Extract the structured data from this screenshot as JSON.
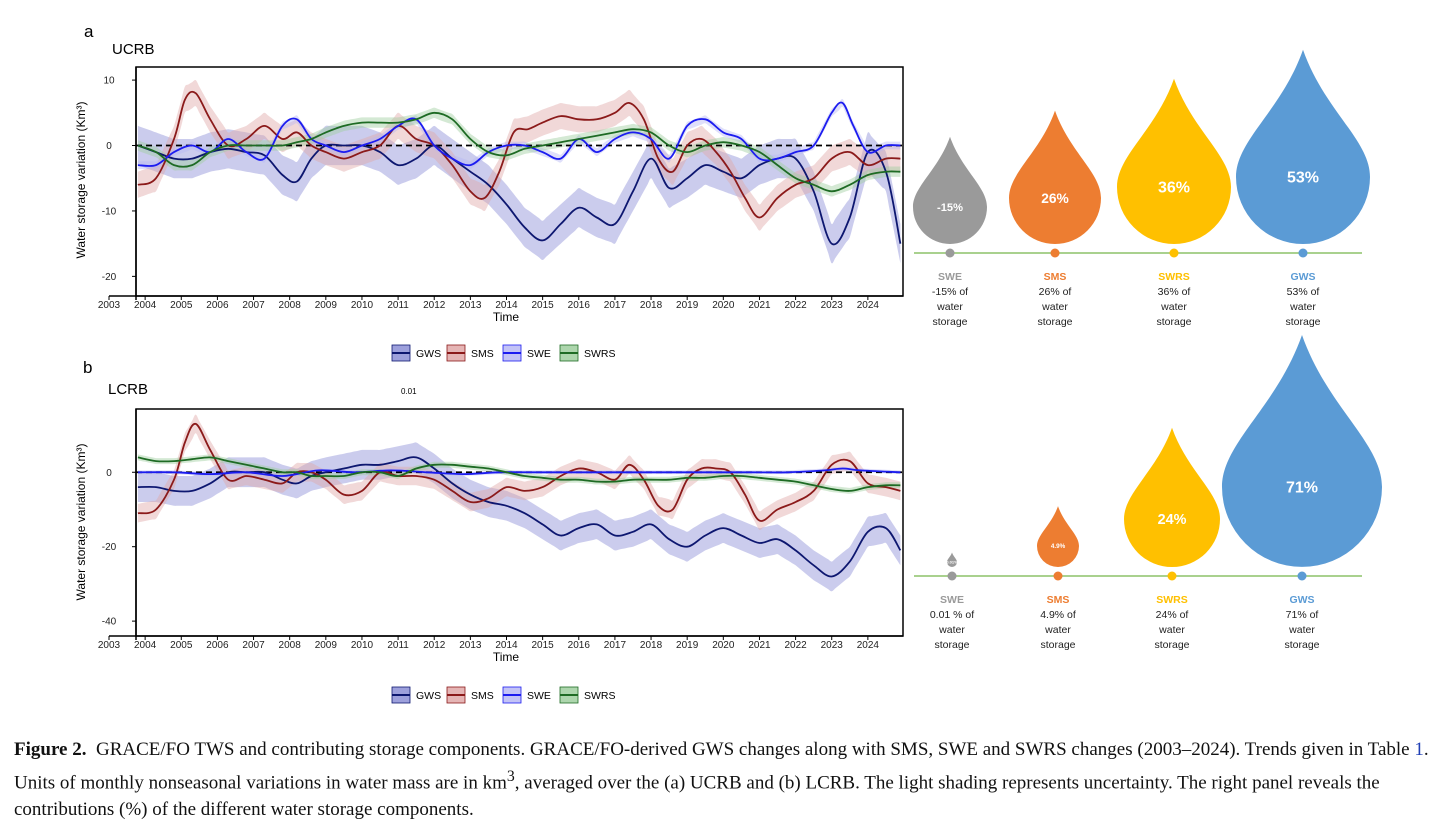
{
  "chart_data": [
    {
      "type": "line",
      "panel": "a",
      "title": "UCRB",
      "xlabel": "Time",
      "ylabel": "Water storage variation  (Km³)",
      "xlim": [
        2003,
        2025
      ],
      "ylim": [
        -23,
        12
      ],
      "x_ticks": [
        "2003",
        "2004",
        "2005",
        "2006",
        "2007",
        "2008",
        "2009",
        "2010",
        "2011",
        "2012",
        "2013",
        "2014",
        "2015",
        "2016",
        "2017",
        "2018",
        "2019",
        "2020",
        "2021",
        "2022",
        "2023",
        "2024"
      ],
      "y_ticks": [
        10,
        0,
        -10,
        -20
      ],
      "reference_line": 0,
      "grid": false,
      "legend": [
        "GWS",
        "SMS",
        "SWE",
        "SWRS"
      ],
      "legend_position": "bottom-center",
      "series": [
        {
          "name": "GWS",
          "color": "#0d1770",
          "band_color": "#8c8fd6",
          "band": 3,
          "x": [
            2003.8,
            2004.3,
            2004.8,
            2005.3,
            2005.8,
            2006.3,
            2006.8,
            2007.3,
            2007.8,
            2008.2,
            2008.6,
            2009.0,
            2009.5,
            2010.0,
            2010.5,
            2011.0,
            2011.5,
            2012.0,
            2012.5,
            2013.0,
            2013.5,
            2014.0,
            2014.5,
            2015.0,
            2015.5,
            2016.0,
            2016.5,
            2017.0,
            2017.5,
            2018.0,
            2018.5,
            2019.0,
            2019.5,
            2020.0,
            2020.5,
            2021.0,
            2021.5,
            2022.0,
            2022.5,
            2023.0,
            2023.5,
            2024.0,
            2024.5,
            2024.9
          ],
          "y": [
            0,
            -1,
            -2,
            -2,
            -1,
            -0.5,
            -1,
            -1.5,
            -4.5,
            -5.5,
            -2,
            0,
            0,
            0,
            -1,
            -3,
            -2,
            0,
            -2,
            -4,
            -6,
            -9,
            -12.5,
            -14.5,
            -12,
            -9.5,
            -11,
            -12,
            -7,
            -2,
            -6.5,
            -5,
            -3,
            -4,
            -5,
            -3,
            -2,
            -2,
            -7,
            -15,
            -11,
            -1,
            -4,
            -15
          ]
        },
        {
          "name": "SMS",
          "color": "#8b1a1a",
          "band_color": "#e0a8a8",
          "band": 2,
          "x": [
            2003.8,
            2004.3,
            2004.8,
            2005.1,
            2005.4,
            2005.8,
            2006.3,
            2006.8,
            2007.3,
            2007.8,
            2008.2,
            2008.6,
            2009.0,
            2009.5,
            2010.0,
            2010.5,
            2011.0,
            2011.5,
            2012.0,
            2012.5,
            2013.0,
            2013.4,
            2013.8,
            2014.2,
            2014.6,
            2015.0,
            2015.5,
            2016.0,
            2016.5,
            2017.0,
            2017.4,
            2017.8,
            2018.2,
            2018.6,
            2019.0,
            2019.4,
            2019.8,
            2020.2,
            2020.6,
            2021.0,
            2021.5,
            2022.0,
            2022.5,
            2023.0,
            2023.5,
            2024.0,
            2024.5,
            2024.9
          ],
          "y": [
            -6,
            -5,
            1,
            7,
            8,
            4,
            0,
            1,
            3,
            1,
            2,
            0,
            -1,
            -2,
            -1,
            0,
            3,
            1,
            0,
            -3,
            -7,
            -8,
            -4,
            2,
            2.5,
            3.5,
            4.5,
            4,
            4,
            5,
            6.5,
            4,
            -2,
            -4,
            0,
            1,
            -1,
            -4,
            -8,
            -11,
            -8,
            -6,
            -5,
            -2,
            -1,
            -3,
            -2,
            -2
          ]
        },
        {
          "name": "SWE",
          "color": "#1c1cf0",
          "band_color": "#b8b8f5",
          "band": 0.6,
          "x": [
            2003.8,
            2004.3,
            2004.8,
            2005.3,
            2005.8,
            2006.3,
            2006.8,
            2007.3,
            2007.8,
            2008.2,
            2008.6,
            2009.0,
            2009.5,
            2010.0,
            2010.5,
            2011.0,
            2011.5,
            2012.0,
            2012.5,
            2013.0,
            2013.5,
            2014.0,
            2014.5,
            2015.0,
            2015.5,
            2016.0,
            2016.5,
            2017.0,
            2017.5,
            2018.0,
            2018.5,
            2019.0,
            2019.5,
            2020.0,
            2020.5,
            2021.0,
            2021.5,
            2022.0,
            2022.5,
            2023.0,
            2023.3,
            2023.6,
            2024.0,
            2024.5,
            2024.9
          ],
          "y": [
            -3,
            -3,
            -1,
            0,
            -1,
            1,
            -1,
            -2,
            3,
            4,
            1,
            0,
            -1,
            0,
            1,
            3,
            4,
            0,
            -2,
            -3,
            -1,
            0,
            0,
            -1,
            -2,
            1,
            -1,
            1,
            2,
            1,
            -2,
            3,
            4,
            2,
            1,
            -2,
            -2,
            -1,
            0,
            5,
            6.5,
            3,
            -1,
            0,
            0
          ]
        },
        {
          "name": "SWRS",
          "color": "#1e6b24",
          "band_color": "#9fcf9f",
          "band": 0.8,
          "x": [
            2003.8,
            2004.3,
            2004.8,
            2005.3,
            2005.8,
            2006.3,
            2006.8,
            2007.3,
            2007.8,
            2008.2,
            2008.6,
            2009.0,
            2009.5,
            2010.0,
            2010.5,
            2011.0,
            2011.5,
            2012.0,
            2012.5,
            2013.0,
            2013.5,
            2014.0,
            2014.5,
            2015.0,
            2015.5,
            2016.0,
            2016.5,
            2017.0,
            2017.5,
            2018.0,
            2018.5,
            2019.0,
            2019.5,
            2020.0,
            2020.5,
            2021.0,
            2021.5,
            2022.0,
            2022.5,
            2023.0,
            2023.5,
            2024.0,
            2024.5,
            2024.9
          ],
          "y": [
            0,
            -1,
            -3,
            -3,
            -1,
            0,
            0,
            0,
            0,
            0.5,
            1,
            2,
            3,
            3.5,
            3.5,
            3.5,
            4,
            5,
            4,
            1,
            -1,
            -1.5,
            -0.5,
            0,
            0.5,
            1,
            1.5,
            2,
            2.5,
            2,
            0,
            -1,
            0,
            0.5,
            0,
            -1,
            -3,
            -5,
            -6,
            -7,
            -6,
            -4.5,
            -4,
            -4
          ]
        }
      ]
    },
    {
      "type": "line",
      "panel": "b",
      "title": "LCRB",
      "xlabel": "Time",
      "ylabel": "Water storage variation  (Km³)",
      "xlim": [
        2003,
        2025
      ],
      "ylim": [
        -44,
        17
      ],
      "x_ticks": [
        "2003",
        "2004",
        "2005",
        "2006",
        "2007",
        "2008",
        "2009",
        "2010",
        "2011",
        "2012",
        "2013",
        "2014",
        "2015",
        "2016",
        "2017",
        "2018",
        "2019",
        "2020",
        "2021",
        "2022",
        "2023",
        "2024"
      ],
      "y_ticks": [
        0,
        -20,
        -40
      ],
      "reference_line": 0,
      "grid": false,
      "legend": [
        "GWS",
        "SMS",
        "SWE",
        "SWRS"
      ],
      "legend_position": "bottom-center",
      "series": [
        {
          "name": "GWS",
          "color": "#0d1770",
          "band_color": "#8c8fd6",
          "band": 4,
          "x": [
            2003.8,
            2004.3,
            2004.8,
            2005.3,
            2005.8,
            2006.3,
            2006.8,
            2007.3,
            2007.8,
            2008.2,
            2008.6,
            2009.0,
            2009.5,
            2010.0,
            2010.5,
            2011.0,
            2011.5,
            2012.0,
            2012.5,
            2013.0,
            2013.5,
            2014.0,
            2014.5,
            2015.0,
            2015.5,
            2016.0,
            2016.5,
            2017.0,
            2017.5,
            2018.0,
            2018.5,
            2019.0,
            2019.5,
            2020.0,
            2020.5,
            2021.0,
            2021.5,
            2022.0,
            2022.5,
            2023.0,
            2023.5,
            2024.0,
            2024.5,
            2024.9
          ],
          "y": [
            -4,
            -4,
            -5,
            -5,
            -3,
            0,
            0,
            0,
            -2,
            -3,
            -1,
            0,
            1,
            2,
            2,
            3,
            4,
            1,
            -3,
            -6,
            -8,
            -9,
            -11,
            -14,
            -17,
            -15,
            -14,
            -17,
            -16,
            -14,
            -18,
            -20,
            -17,
            -15,
            -17,
            -19,
            -18,
            -21,
            -25,
            -28,
            -24,
            -16,
            -15,
            -21
          ]
        },
        {
          "name": "SMS",
          "color": "#8b1a1a",
          "band_color": "#e0a8a8",
          "band": 2.5,
          "x": [
            2003.8,
            2004.3,
            2004.8,
            2005.1,
            2005.4,
            2005.8,
            2006.3,
            2006.8,
            2007.3,
            2007.8,
            2008.2,
            2008.6,
            2009.0,
            2009.5,
            2010.0,
            2010.5,
            2011.0,
            2011.5,
            2012.0,
            2012.5,
            2013.0,
            2013.5,
            2014.0,
            2014.5,
            2015.0,
            2015.5,
            2016.0,
            2016.5,
            2017.0,
            2017.4,
            2017.8,
            2018.2,
            2018.6,
            2019.0,
            2019.4,
            2019.8,
            2020.2,
            2020.6,
            2021.0,
            2021.5,
            2022.0,
            2022.5,
            2023.0,
            2023.5,
            2024.0,
            2024.5,
            2024.9
          ],
          "y": [
            -11,
            -10,
            -2,
            8,
            13,
            6,
            -2,
            -1,
            -2,
            -3,
            0,
            0,
            -2,
            -6,
            -5,
            0,
            -1,
            -1,
            -2,
            -5,
            -8,
            -7,
            -4,
            -5,
            -4,
            -1,
            1,
            0,
            -2,
            2,
            -2,
            -9,
            -10,
            -2,
            1,
            1,
            0,
            -6,
            -13,
            -10,
            -8,
            -5,
            2,
            3,
            -3,
            -4,
            -5
          ]
        },
        {
          "name": "SWE",
          "color": "#1c1cf0",
          "band_color": "#b8b8f5",
          "band": 0.5,
          "x": [
            2003.8,
            2004.8,
            2005.8,
            2006.8,
            2007.8,
            2008.8,
            2009.8,
            2010.8,
            2011.8,
            2012.8,
            2013.8,
            2014.8,
            2015.8,
            2016.8,
            2017.8,
            2018.8,
            2019.8,
            2020.8,
            2021.8,
            2022.8,
            2023.3,
            2023.8,
            2024.9
          ],
          "y": [
            0,
            0,
            -0.5,
            0,
            -1,
            0.5,
            0,
            0.5,
            0,
            -0.5,
            0,
            0,
            0,
            0,
            0,
            0,
            0,
            0,
            0,
            0.5,
            1,
            0.5,
            0
          ]
        },
        {
          "name": "SWRS",
          "color": "#1e6b24",
          "band_color": "#9fcf9f",
          "band": 0.8,
          "x": [
            2003.8,
            2004.3,
            2004.8,
            2005.3,
            2005.8,
            2006.3,
            2006.8,
            2007.3,
            2007.8,
            2008.2,
            2008.6,
            2009.0,
            2009.5,
            2010.0,
            2010.5,
            2011.0,
            2011.5,
            2012.0,
            2012.5,
            2013.0,
            2013.5,
            2014.0,
            2014.5,
            2015.0,
            2015.5,
            2016.0,
            2016.5,
            2017.0,
            2017.5,
            2018.0,
            2018.5,
            2019.0,
            2019.5,
            2020.0,
            2020.5,
            2021.0,
            2021.5,
            2022.0,
            2022.5,
            2023.0,
            2023.5,
            2024.0,
            2024.5,
            2024.9
          ],
          "y": [
            4,
            3,
            3,
            3.5,
            4,
            3,
            2,
            1,
            0,
            0,
            -1,
            -1,
            -1,
            0,
            0,
            -1,
            1,
            2,
            2,
            1.5,
            1,
            0,
            -1,
            -1.5,
            -2,
            -2,
            -2.5,
            -2.5,
            -2,
            -2,
            -2,
            -1.5,
            -1.5,
            -1,
            -1,
            -1.5,
            -2,
            -2.5,
            -3.5,
            -4.5,
            -5,
            -4,
            -3.5,
            -3.5
          ]
        }
      ]
    }
  ],
  "panel_labels": {
    "a": "a",
    "b": "b"
  },
  "stray_label": "0.01",
  "contributions": [
    {
      "panel": "UCRB",
      "items": [
        {
          "name": "SWE",
          "value": -15,
          "drop_label": "-15%",
          "desc": [
            "-15% of",
            "water",
            "storage"
          ],
          "color": "#9a9a9a"
        },
        {
          "name": "SMS",
          "value": 26,
          "drop_label": "26%",
          "desc": [
            "26% of",
            "water",
            "storage"
          ],
          "color": "#ed7d31"
        },
        {
          "name": "SWRS",
          "value": 36,
          "drop_label": "36%",
          "desc": [
            "36% of",
            "water",
            "storage"
          ],
          "color": "#ffc000"
        },
        {
          "name": "GWS",
          "value": 53,
          "drop_label": "53%",
          "desc": [
            "53% of",
            "water",
            "storage"
          ],
          "color": "#5b9bd5"
        }
      ]
    },
    {
      "panel": "LCRB",
      "items": [
        {
          "name": "SWE",
          "value": 0.01,
          "drop_label": "0.01%",
          "desc": [
            "0.01 % of",
            "water",
            "storage"
          ],
          "color": "#9a9a9a"
        },
        {
          "name": "SMS",
          "value": 4.9,
          "drop_label": "4.9%",
          "desc": [
            "4.9% of",
            "water",
            "storage"
          ],
          "color": "#ed7d31"
        },
        {
          "name": "SWRS",
          "value": 24,
          "drop_label": "24%",
          "desc": [
            "24% of",
            "water",
            "storage"
          ],
          "color": "#ffc000"
        },
        {
          "name": "GWS",
          "value": 71,
          "drop_label": "71%",
          "desc": [
            "71% of",
            "water",
            "storage"
          ],
          "color": "#5b9bd5"
        }
      ]
    }
  ],
  "timeline_color": "#a9d18e",
  "caption": {
    "label": "Figure 2.",
    "part1": "GRACE/FO TWS and contributing storage components. GRACE/FO-derived GWS changes along with SMS, SWE and SWRS changes (2003–2024). Trends given in Table ",
    "table_ref": "1",
    "part2": ". Units of monthly nonseasonal variations in water mass are in km",
    "sup": "3",
    "part3": ", averaged over the (a) UCRB and (b) LCRB. The light shading represents uncertainty. The right panel reveals the contributions (%) of the different water storage components."
  }
}
